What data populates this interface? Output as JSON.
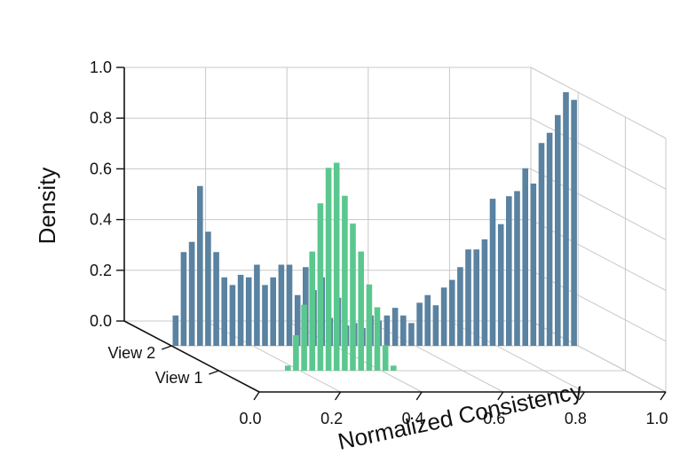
{
  "chart_data": {
    "type": "bar",
    "subtype": "3d-histogram",
    "xlabel": "Normalized Consistency",
    "ylabel": "",
    "zlabel": "Density",
    "xlim": [
      0.0,
      1.0
    ],
    "zlim": [
      0.0,
      1.0
    ],
    "x_ticks": [
      "0.0",
      "0.2",
      "0.4",
      "0.6",
      "0.8",
      "1.0"
    ],
    "z_ticks": [
      "0.0",
      "0.2",
      "0.4",
      "0.6",
      "0.8",
      "1.0"
    ],
    "y_ticks": [
      "View 2",
      "View 1"
    ],
    "series": [
      {
        "name": "View 2",
        "color": "#5a82a1",
        "bin_width": 0.02,
        "x": [
          0.01,
          0.03,
          0.05,
          0.07,
          0.09,
          0.11,
          0.13,
          0.15,
          0.17,
          0.19,
          0.21,
          0.23,
          0.25,
          0.27,
          0.29,
          0.31,
          0.33,
          0.35,
          0.37,
          0.39,
          0.41,
          0.43,
          0.45,
          0.47,
          0.49,
          0.51,
          0.53,
          0.55,
          0.57,
          0.59,
          0.61,
          0.63,
          0.65,
          0.67,
          0.69,
          0.71,
          0.73,
          0.75,
          0.77,
          0.79,
          0.81,
          0.83,
          0.85,
          0.87,
          0.89,
          0.91,
          0.93,
          0.95,
          0.97,
          0.99
        ],
        "values": [
          0.12,
          0.37,
          0.41,
          0.63,
          0.45,
          0.37,
          0.27,
          0.24,
          0.28,
          0.27,
          0.32,
          0.24,
          0.27,
          0.32,
          0.32,
          0.2,
          0.31,
          0.22,
          0.27,
          0.11,
          0.19,
          0.08,
          0.09,
          0.07,
          0.12,
          0.1,
          0.12,
          0.15,
          0.12,
          0.09,
          0.17,
          0.2,
          0.16,
          0.23,
          0.26,
          0.31,
          0.38,
          0.38,
          0.42,
          0.58,
          0.48,
          0.59,
          0.61,
          0.7,
          0.64,
          0.8,
          0.84,
          0.91,
          1.0,
          0.97
        ]
      },
      {
        "name": "View 1",
        "color": "#5ac88e",
        "bin_width": 0.02,
        "x": [
          0.17,
          0.19,
          0.21,
          0.23,
          0.25,
          0.27,
          0.29,
          0.31,
          0.33,
          0.35,
          0.37,
          0.39,
          0.41,
          0.43
        ],
        "values": [
          0.02,
          0.14,
          0.26,
          0.47,
          0.66,
          0.8,
          0.82,
          0.69,
          0.58,
          0.47,
          0.34,
          0.25,
          0.1,
          0.02
        ]
      }
    ]
  }
}
